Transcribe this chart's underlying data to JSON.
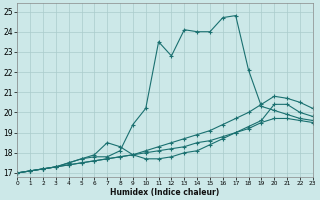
{
  "xlabel": "Humidex (Indice chaleur)",
  "ylabel": "",
  "xlim": [
    0,
    23
  ],
  "ylim": [
    16.8,
    25.4
  ],
  "yticks": [
    17,
    18,
    19,
    20,
    21,
    22,
    23,
    24,
    25
  ],
  "xticks": [
    0,
    1,
    2,
    3,
    4,
    5,
    6,
    7,
    8,
    9,
    10,
    11,
    12,
    13,
    14,
    15,
    16,
    17,
    18,
    19,
    20,
    21,
    22,
    23
  ],
  "bg_color": "#cce8e8",
  "grid_color": "#aacccc",
  "line_color": "#1a7070",
  "lines": [
    {
      "x": [
        0,
        1,
        2,
        3,
        4,
        5,
        6,
        7,
        8,
        9,
        10,
        11,
        12,
        13,
        14,
        15,
        16,
        17,
        18,
        19,
        20,
        21,
        22,
        23
      ],
      "y": [
        17.0,
        17.1,
        17.2,
        17.3,
        17.5,
        17.7,
        17.8,
        17.8,
        18.1,
        19.4,
        20.2,
        23.5,
        22.8,
        24.1,
        24.0,
        24.0,
        24.7,
        24.8,
        22.1,
        20.3,
        20.1,
        19.9,
        19.7,
        19.6
      ]
    },
    {
      "x": [
        0,
        1,
        2,
        3,
        4,
        5,
        6,
        7,
        8,
        9,
        10,
        11,
        12,
        13,
        14,
        15,
        16,
        17,
        18,
        19,
        20,
        21,
        22,
        23
      ],
      "y": [
        17.0,
        17.1,
        17.2,
        17.3,
        17.5,
        17.7,
        17.9,
        18.5,
        18.3,
        17.9,
        17.7,
        17.7,
        17.8,
        18.0,
        18.1,
        18.4,
        18.7,
        19.0,
        19.3,
        19.6,
        20.4,
        20.4,
        20.0,
        19.8
      ]
    },
    {
      "x": [
        0,
        1,
        2,
        3,
        4,
        5,
        6,
        7,
        8,
        9,
        10,
        11,
        12,
        13,
        14,
        15,
        16,
        17,
        18,
        19,
        20,
        21,
        22,
        23
      ],
      "y": [
        17.0,
        17.1,
        17.2,
        17.3,
        17.4,
        17.5,
        17.6,
        17.7,
        17.8,
        17.9,
        18.1,
        18.3,
        18.5,
        18.7,
        18.9,
        19.1,
        19.4,
        19.7,
        20.0,
        20.4,
        20.8,
        20.7,
        20.5,
        20.2
      ]
    },
    {
      "x": [
        0,
        1,
        2,
        3,
        4,
        5,
        6,
        7,
        8,
        9,
        10,
        11,
        12,
        13,
        14,
        15,
        16,
        17,
        18,
        19,
        20,
        21,
        22,
        23
      ],
      "y": [
        17.0,
        17.1,
        17.2,
        17.3,
        17.4,
        17.5,
        17.6,
        17.7,
        17.8,
        17.9,
        18.0,
        18.1,
        18.2,
        18.3,
        18.5,
        18.6,
        18.8,
        19.0,
        19.2,
        19.5,
        19.7,
        19.7,
        19.6,
        19.5
      ]
    }
  ]
}
